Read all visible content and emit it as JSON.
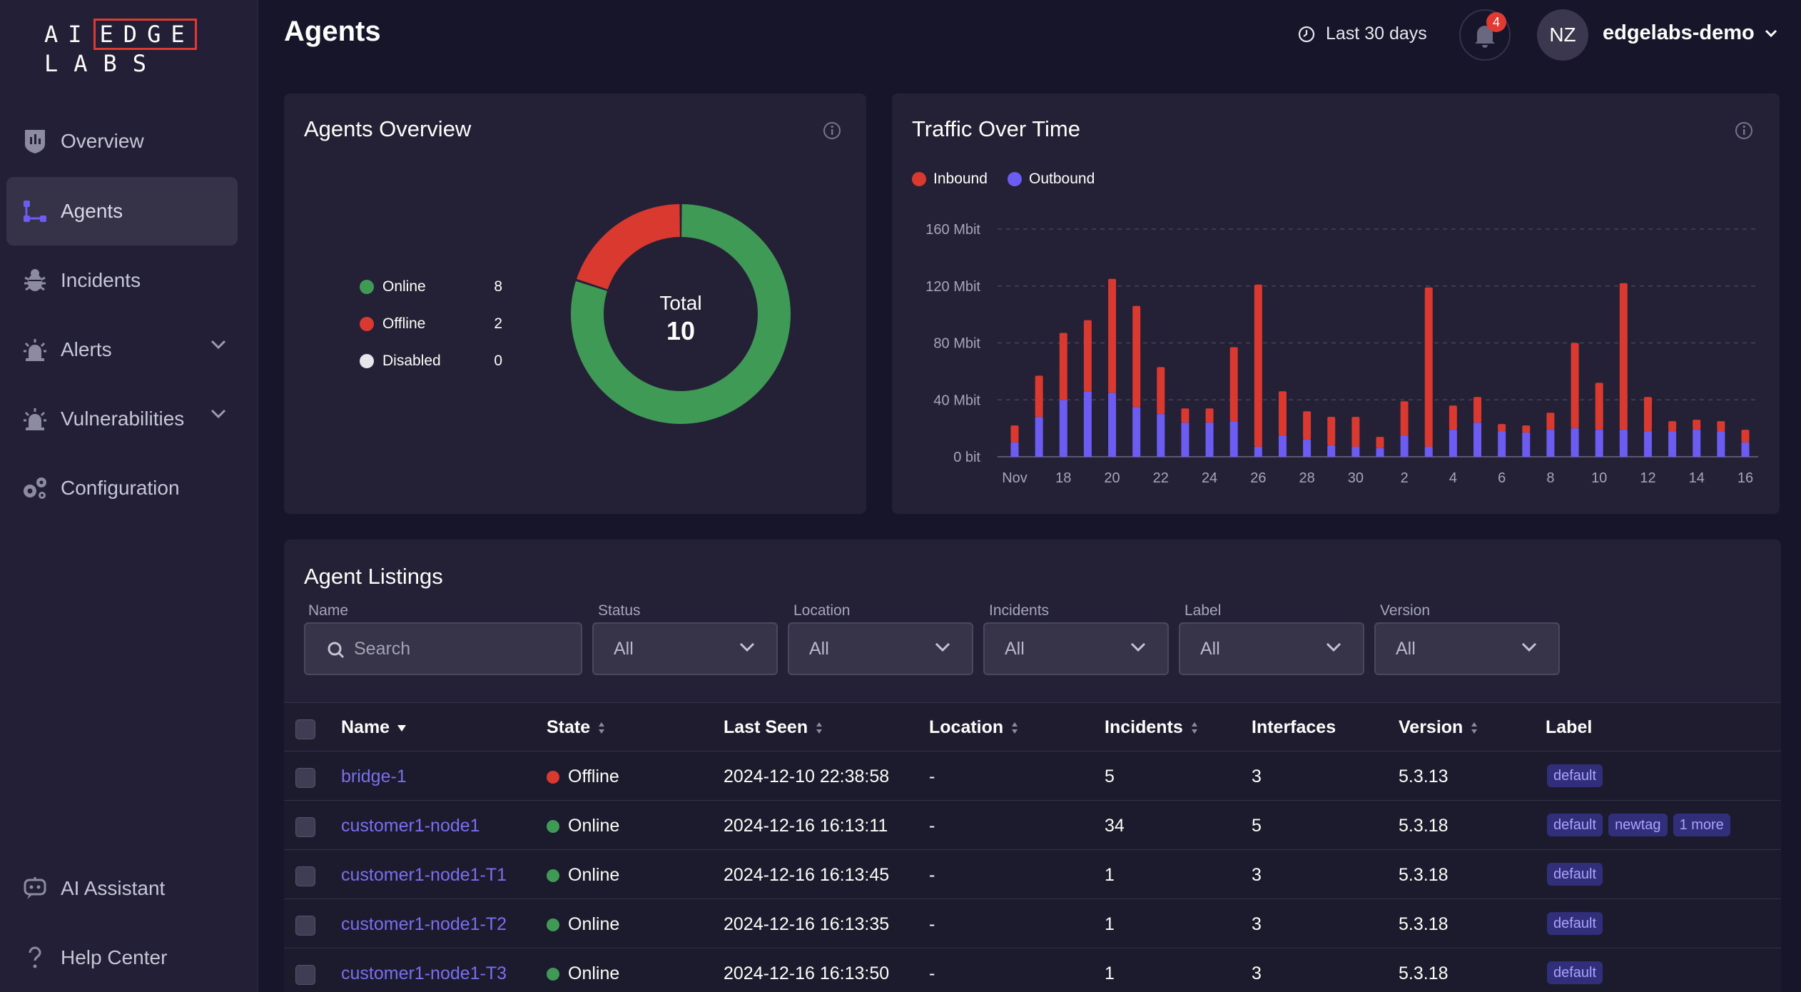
{
  "brand": {
    "logo_line1_a": "AI",
    "logo_line1_b": "EDGE",
    "logo_line2": "LABS"
  },
  "sidebar": {
    "items": [
      {
        "label": "Overview"
      },
      {
        "label": "Agents"
      },
      {
        "label": "Incidents"
      },
      {
        "label": "Alerts"
      },
      {
        "label": "Vulnerabilities"
      },
      {
        "label": "Configuration"
      }
    ],
    "bottom": [
      {
        "label": "AI Assistant"
      },
      {
        "label": "Help Center"
      }
    ]
  },
  "header": {
    "title": "Agents",
    "time_range": "Last 30 days",
    "notifications_count": "4",
    "avatar_initials": "NZ",
    "account_name": "edgelabs-demo"
  },
  "agents_overview": {
    "title": "Agents Overview",
    "legend": [
      {
        "label": "Online",
        "count": "8",
        "color": "#3f9a55"
      },
      {
        "label": "Offline",
        "count": "2",
        "color": "#d9392f"
      },
      {
        "label": "Disabled",
        "count": "0",
        "color": "#e6e6ec"
      }
    ],
    "total_label": "Total",
    "total_value": "10",
    "chart_data": {
      "type": "pie",
      "labels": [
        "Online",
        "Offline",
        "Disabled"
      ],
      "values": [
        8,
        2,
        0
      ],
      "colors": [
        "#3f9a55",
        "#d9392f",
        "#e6e6ec"
      ],
      "donut": true,
      "center_text": "Total 10"
    }
  },
  "traffic": {
    "title": "Traffic Over Time",
    "legend": [
      {
        "label": "Inbound",
        "color": "#d9392f"
      },
      {
        "label": "Outbound",
        "color": "#6c5cf2"
      }
    ],
    "chart_data": {
      "type": "bar",
      "stacked": true,
      "title": "Traffic Over Time",
      "ylabel": "Mbit",
      "ylim": [
        0,
        160
      ],
      "yticks": [
        "0 bit",
        "40 Mbit",
        "80 Mbit",
        "120 Mbit",
        "160 Mbit"
      ],
      "ytick_values": [
        0,
        40,
        80,
        120,
        160
      ],
      "xtick_labels": [
        "Nov",
        "18",
        "20",
        "22",
        "24",
        "26",
        "28",
        "30",
        "2",
        "4",
        "6",
        "8",
        "10",
        "12",
        "14",
        "16"
      ],
      "categories": [
        "Nov 16",
        "Nov 17",
        "Nov 18",
        "Nov 19",
        "Nov 20",
        "Nov 21",
        "Nov 22",
        "Nov 23",
        "Nov 24",
        "Nov 25",
        "Nov 26",
        "Nov 27",
        "Nov 28",
        "Nov 29",
        "Nov 30",
        "Dec 1",
        "Dec 2",
        "Dec 3",
        "Dec 4",
        "Dec 5",
        "Dec 6",
        "Dec 7",
        "Dec 8",
        "Dec 9",
        "Dec 10",
        "Dec 11",
        "Dec 12",
        "Dec 13",
        "Dec 14",
        "Dec 15",
        "Dec 16"
      ],
      "series": [
        {
          "name": "Outbound",
          "values": [
            10,
            28,
            40,
            46,
            45,
            35,
            30,
            24,
            24,
            25,
            7,
            15,
            12,
            8,
            7,
            6,
            15,
            7,
            19,
            24,
            18,
            17,
            19,
            20,
            19,
            19,
            18,
            18,
            19,
            18,
            10
          ]
        },
        {
          "name": "Inbound",
          "values": [
            12,
            29,
            47,
            50,
            80,
            71,
            33,
            10,
            10,
            52,
            114,
            31,
            20,
            20,
            21,
            8,
            24,
            112,
            17,
            18,
            5,
            5,
            12,
            60,
            33,
            103,
            24,
            7,
            7,
            7,
            9
          ]
        }
      ]
    }
  },
  "listings": {
    "title": "Agent Listings",
    "filters": {
      "name_label": "Name",
      "search_placeholder": "Search",
      "status_label": "Status",
      "status_value": "All",
      "location_label": "Location",
      "location_value": "All",
      "incidents_label": "Incidents",
      "incidents_value": "All",
      "label_label": "Label",
      "label_value": "All",
      "version_label": "Version",
      "version_value": "All"
    },
    "columns": [
      "Name",
      "State",
      "Last Seen",
      "Location",
      "Incidents",
      "Interfaces",
      "Version",
      "Label"
    ],
    "rows": [
      {
        "name": "bridge-1",
        "state": "Offline",
        "state_color": "#d9392f",
        "last_seen": "2024-12-10 22:38:58",
        "location": "-",
        "incidents": "5",
        "interfaces": "3",
        "version": "5.3.13",
        "tags": [
          "default"
        ]
      },
      {
        "name": "customer1-node1",
        "state": "Online",
        "state_color": "#3f9a55",
        "last_seen": "2024-12-16 16:13:11",
        "location": "-",
        "incidents": "34",
        "interfaces": "5",
        "version": "5.3.18",
        "tags": [
          "default",
          "newtag",
          "1 more"
        ]
      },
      {
        "name": "customer1-node1-T1",
        "state": "Online",
        "state_color": "#3f9a55",
        "last_seen": "2024-12-16 16:13:45",
        "location": "-",
        "incidents": "1",
        "interfaces": "3",
        "version": "5.3.18",
        "tags": [
          "default"
        ]
      },
      {
        "name": "customer1-node1-T2",
        "state": "Online",
        "state_color": "#3f9a55",
        "last_seen": "2024-12-16 16:13:35",
        "location": "-",
        "incidents": "1",
        "interfaces": "3",
        "version": "5.3.18",
        "tags": [
          "default"
        ]
      },
      {
        "name": "customer1-node1-T3",
        "state": "Online",
        "state_color": "#3f9a55",
        "last_seen": "2024-12-16 16:13:50",
        "location": "-",
        "incidents": "1",
        "interfaces": "3",
        "version": "5.3.18",
        "tags": [
          "default"
        ]
      }
    ]
  }
}
